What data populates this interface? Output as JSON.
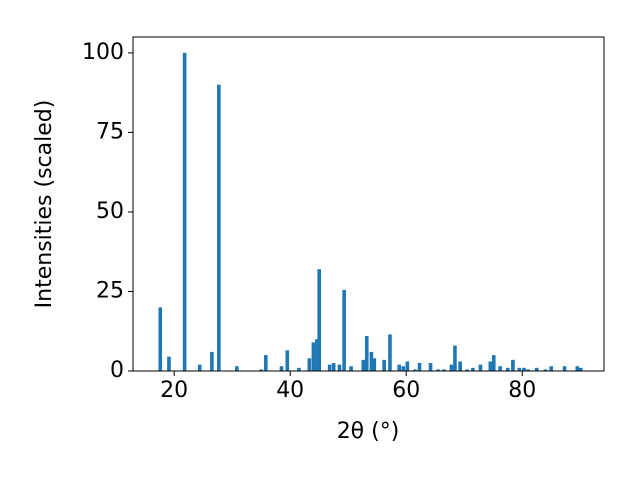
{
  "chart_data": {
    "type": "bar",
    "x": [
      17.6,
      19.1,
      21.8,
      24.4,
      26.5,
      27.7,
      30.8,
      35.0,
      35.8,
      38.5,
      39.5,
      41.5,
      43.3,
      44.0,
      44.6,
      45.0,
      46.8,
      47.5,
      48.5,
      49.3,
      50.5,
      52.6,
      53.2,
      54.0,
      54.5,
      56.2,
      57.2,
      58.8,
      59.5,
      60.2,
      61.5,
      62.3,
      64.2,
      65.5,
      66.5,
      67.8,
      68.4,
      69.3,
      70.5,
      71.5,
      72.8,
      74.5,
      75.1,
      76.2,
      77.5,
      78.4,
      79.5,
      80.3,
      81.0,
      82.5,
      84.0,
      85.0,
      87.3,
      89.5,
      90.1
    ],
    "values": [
      20,
      4.5,
      100,
      2,
      6,
      90,
      1.5,
      0.5,
      5,
      1.5,
      6.5,
      1,
      4,
      9,
      10,
      32,
      2,
      2.5,
      2,
      25.5,
      1.5,
      3.5,
      11,
      6,
      4,
      3.5,
      11.5,
      2,
      1.5,
      3,
      0.5,
      2.5,
      2.5,
      0.5,
      0.5,
      2,
      8,
      3,
      0.5,
      1,
      2,
      3,
      5,
      1.5,
      1,
      3.5,
      1,
      1,
      0.5,
      1,
      0.5,
      1.5,
      1.5,
      1.5,
      1
    ],
    "color": "#1f77b4",
    "xlabel": "2θ (°)",
    "ylabel": "Intensities (scaled)",
    "xlim": [
      12.9,
      94.1
    ],
    "xticks": [
      20,
      40,
      60,
      80
    ],
    "ylim": [
      0,
      105
    ],
    "yticks": [
      0,
      25,
      50,
      75,
      100
    ]
  }
}
